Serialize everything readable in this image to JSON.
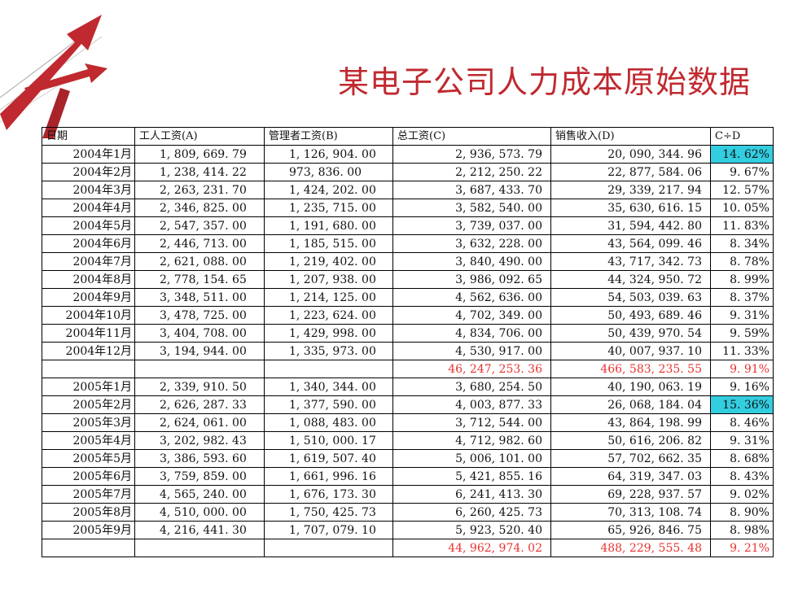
{
  "title": "某电子公司人力成本原始数据",
  "headers": [
    "日期",
    "工人工资(A)",
    "管理者工资(B)",
    "总工资(C)",
    "销售收入(D)",
    "C÷D"
  ],
  "rows": [
    {
      "date": "2004年1月",
      "a": "1, 809, 669. 79",
      "b": "1, 126, 904. 00",
      "c": "2, 936, 573. 79",
      "d": "20, 090, 344. 96",
      "ratio": "14. 62%",
      "highlight": true
    },
    {
      "date": "2004年2月",
      "a": "1, 238, 414. 22",
      "b": "973, 836. 00",
      "c": "2, 212, 250. 22",
      "d": "22, 877, 584. 06",
      "ratio": "9. 67%"
    },
    {
      "date": "2004年3月",
      "a": "2, 263, 231. 70",
      "b": "1, 424, 202. 00",
      "c": "3, 687, 433. 70",
      "d": "29, 339, 217. 94",
      "ratio": "12. 57%"
    },
    {
      "date": "2004年4月",
      "a": "2, 346, 825. 00",
      "b": "1, 235, 715. 00",
      "c": "3, 582, 540. 00",
      "d": "35, 630, 616. 15",
      "ratio": "10. 05%"
    },
    {
      "date": "2004年5月",
      "a": "2, 547, 357. 00",
      "b": "1, 191, 680. 00",
      "c": "3, 739, 037. 00",
      "d": "31, 594, 442. 80",
      "ratio": "11. 83%"
    },
    {
      "date": "2004年6月",
      "a": "2, 446, 713. 00",
      "b": "1, 185, 515. 00",
      "c": "3, 632, 228. 00",
      "d": "43, 564, 099. 46",
      "ratio": "8. 34%"
    },
    {
      "date": "2004年7月",
      "a": "2, 621, 088. 00",
      "b": "1, 219, 402. 00",
      "c": "3, 840, 490. 00",
      "d": "43, 717, 342. 73",
      "ratio": "8. 78%"
    },
    {
      "date": "2004年8月",
      "a": "2, 778, 154. 65",
      "b": "1, 207, 938. 00",
      "c": "3, 986, 092. 65",
      "d": "44, 324, 950. 72",
      "ratio": "8. 99%"
    },
    {
      "date": "2004年9月",
      "a": "3, 348, 511. 00",
      "b": "1, 214, 125. 00",
      "c": "4, 562, 636. 00",
      "d": "54, 503, 039. 63",
      "ratio": "8. 37%"
    },
    {
      "date": "2004年10月",
      "a": "3, 478, 725. 00",
      "b": "1, 223, 624. 00",
      "c": "4, 702, 349. 00",
      "d": "50, 493, 689. 46",
      "ratio": "9. 31%"
    },
    {
      "date": "2004年11月",
      "a": "3, 404, 708. 00",
      "b": "1, 429, 998. 00",
      "c": "4, 834, 706. 00",
      "d": "50, 439, 970. 54",
      "ratio": "9. 59%"
    },
    {
      "date": "2004年12月",
      "a": "3, 194, 944. 00",
      "b": "1, 335, 973. 00",
      "c": "4, 530, 917. 00",
      "d": "40, 007, 937. 10",
      "ratio": "11. 33%"
    },
    {
      "date": "",
      "a": "",
      "b": "",
      "c": "46, 247, 253. 36",
      "d": "466, 583, 235. 55",
      "ratio": "9. 91%",
      "subtotal": true
    },
    {
      "date": "2005年1月",
      "a": "2, 339, 910. 50",
      "b": "1, 340, 344. 00",
      "c": "3, 680, 254. 50",
      "d": "40, 190, 063. 19",
      "ratio": "9. 16%"
    },
    {
      "date": "2005年2月",
      "a": "2, 626, 287. 33",
      "b": "1, 377, 590. 00",
      "c": "4, 003, 877. 33",
      "d": "26, 068, 184. 04",
      "ratio": "15. 36%",
      "highlight": true
    },
    {
      "date": "2005年3月",
      "a": "2, 624, 061. 00",
      "b": "1, 088, 483. 00",
      "c": "3, 712, 544. 00",
      "d": "43, 864, 198. 99",
      "ratio": "8. 46%"
    },
    {
      "date": "2005年4月",
      "a": "3, 202, 982. 43",
      "b": "1, 510, 000. 17",
      "c": "4, 712, 982. 60",
      "d": "50, 616, 206. 82",
      "ratio": "9. 31%"
    },
    {
      "date": "2005年5月",
      "a": "3, 386, 593. 60",
      "b": "1, 619, 507. 40",
      "c": "5, 006, 101. 00",
      "d": "57, 702, 662. 35",
      "ratio": "8. 68%"
    },
    {
      "date": "2005年6月",
      "a": "3, 759, 859. 00",
      "b": "1, 661, 996. 16",
      "c": "5, 421, 855. 16",
      "d": "64, 319, 347. 03",
      "ratio": "8. 43%"
    },
    {
      "date": "2005年7月",
      "a": "4, 565, 240. 00",
      "b": "1, 676, 173. 30",
      "c": "6, 241, 413. 30",
      "d": "69, 228, 937. 57",
      "ratio": "9. 02%"
    },
    {
      "date": "2005年8月",
      "a": "4, 510, 000. 00",
      "b": "1, 750, 425. 73",
      "c": "6, 260, 425. 73",
      "d": "70, 313, 108. 74",
      "ratio": "8. 90%"
    },
    {
      "date": "2005年9月",
      "a": "4, 216, 441. 30",
      "b": "1, 707, 079. 10",
      "c": "5, 923, 520. 40",
      "d": "65, 926, 846. 75",
      "ratio": "8. 98%"
    },
    {
      "date": "",
      "a": "",
      "b": "",
      "c": "44, 962, 974. 02",
      "d": "488, 229, 555. 48",
      "ratio": "9. 21%",
      "subtotal": true
    }
  ],
  "colors": {
    "title": "#c0292f",
    "subtotal_text": "#e8332f",
    "highlight": "#33cde0",
    "logo": "#c0292f"
  },
  "icons": {
    "logo": "red-arrow-logo-icon"
  }
}
